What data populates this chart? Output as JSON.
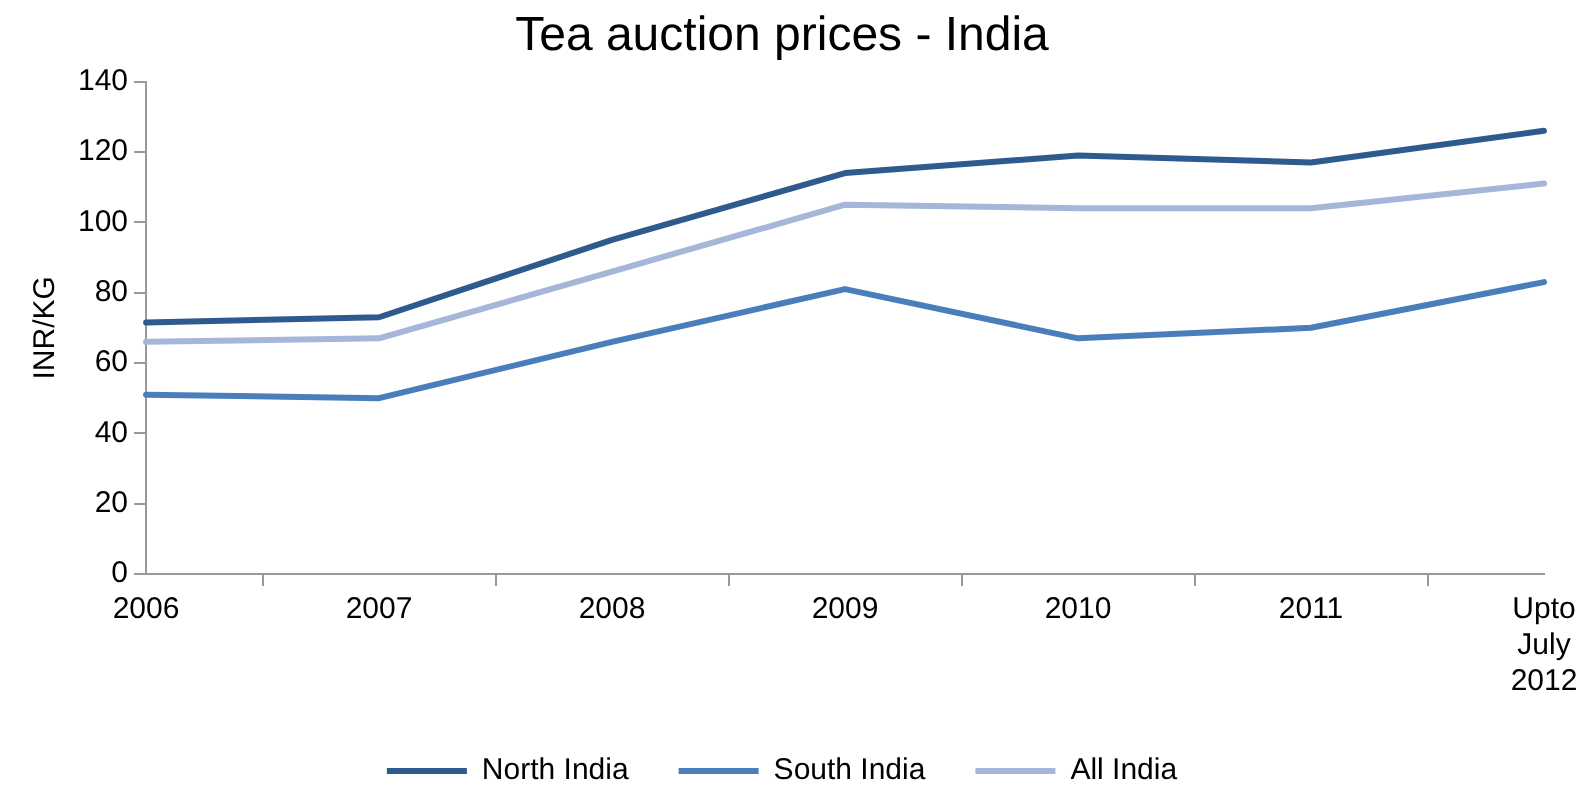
{
  "chart_data": {
    "type": "line",
    "title": "Tea auction prices - India",
    "ylabel": "INR/KG",
    "categories": [
      "2006",
      "2007",
      "2008",
      "2009",
      "2010",
      "2011",
      "Upto July 2012"
    ],
    "series": [
      {
        "name": "North India",
        "color": "#2e5a8e",
        "values": [
          71.5,
          73,
          95,
          114,
          119,
          117,
          126
        ]
      },
      {
        "name": "South India",
        "color": "#4a7ebb",
        "values": [
          51,
          50,
          66,
          81,
          67,
          70,
          83
        ]
      },
      {
        "name": "All India",
        "color": "#a5b6d8",
        "values": [
          66,
          67,
          86,
          105,
          104,
          104,
          111
        ]
      }
    ],
    "ylim": [
      0,
      140
    ],
    "yticks": [
      0,
      20,
      40,
      60,
      80,
      100,
      120,
      140
    ],
    "grid": false,
    "legend": "bottom",
    "marker": "none",
    "line_style": "solid"
  }
}
